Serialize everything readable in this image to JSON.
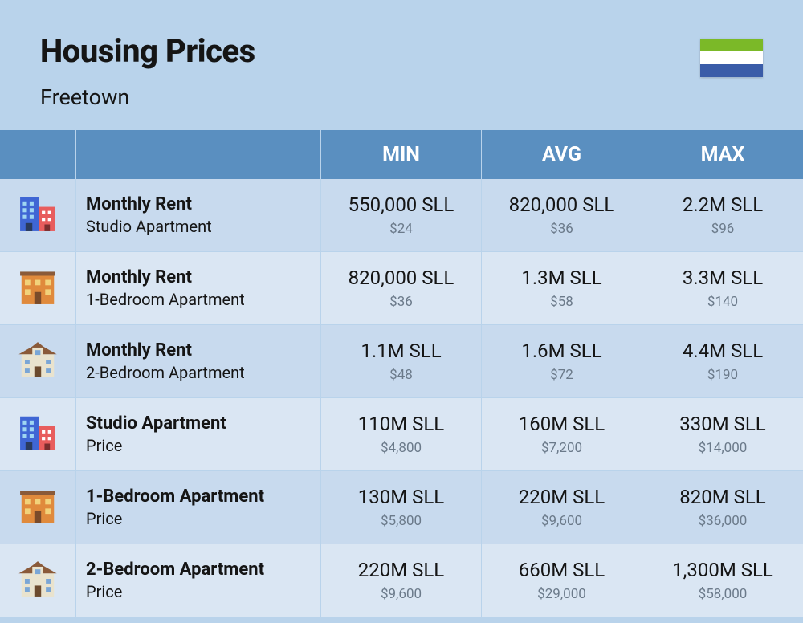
{
  "header": {
    "title": "Housing Prices",
    "city": "Freetown",
    "flag_colors": [
      "#7bb928",
      "#ffffff",
      "#3a5ca8"
    ]
  },
  "columns": [
    "MIN",
    "AVG",
    "MAX"
  ],
  "colors": {
    "page_bg": "#b9d3eb",
    "header_bg": "#5a8fc0",
    "header_fg": "#ffffff",
    "row_even_bg": "#c8daee",
    "row_odd_bg": "#dae6f3",
    "text": "#151515",
    "subtext": "#6b7a8a"
  },
  "icons": {
    "studio": {
      "type": "tall-buildings",
      "colors": {
        "left": "#3f66d4",
        "right": "#e85d5d",
        "windows": "#9fd6f2",
        "door": "#333"
      }
    },
    "one_br": {
      "type": "wide-building",
      "colors": {
        "body": "#e08a3c",
        "windows": "#f2d27a",
        "door": "#7a4b2a",
        "roof": "#8a5a39"
      }
    },
    "two_br": {
      "type": "mansion",
      "colors": {
        "body": "#e9e3ce",
        "roof": "#8a5a39",
        "windows": "#7aa6d6",
        "door": "#6b4a2d"
      }
    }
  },
  "rows": [
    {
      "icon": "studio",
      "title": "Monthly Rent",
      "sub": "Studio Apartment",
      "min": {
        "main": "550,000 SLL",
        "sub": "$24"
      },
      "avg": {
        "main": "820,000 SLL",
        "sub": "$36"
      },
      "max": {
        "main": "2.2M SLL",
        "sub": "$96"
      }
    },
    {
      "icon": "one_br",
      "title": "Monthly Rent",
      "sub": "1-Bedroom Apartment",
      "min": {
        "main": "820,000 SLL",
        "sub": "$36"
      },
      "avg": {
        "main": "1.3M SLL",
        "sub": "$58"
      },
      "max": {
        "main": "3.3M SLL",
        "sub": "$140"
      }
    },
    {
      "icon": "two_br",
      "title": "Monthly Rent",
      "sub": "2-Bedroom Apartment",
      "min": {
        "main": "1.1M SLL",
        "sub": "$48"
      },
      "avg": {
        "main": "1.6M SLL",
        "sub": "$72"
      },
      "max": {
        "main": "4.4M SLL",
        "sub": "$190"
      }
    },
    {
      "icon": "studio",
      "title": "Studio Apartment",
      "sub": "Price",
      "min": {
        "main": "110M SLL",
        "sub": "$4,800"
      },
      "avg": {
        "main": "160M SLL",
        "sub": "$7,200"
      },
      "max": {
        "main": "330M SLL",
        "sub": "$14,000"
      }
    },
    {
      "icon": "one_br",
      "title": "1-Bedroom Apartment",
      "sub": "Price",
      "min": {
        "main": "130M SLL",
        "sub": "$5,800"
      },
      "avg": {
        "main": "220M SLL",
        "sub": "$9,600"
      },
      "max": {
        "main": "820M SLL",
        "sub": "$36,000"
      }
    },
    {
      "icon": "two_br",
      "title": "2-Bedroom Apartment",
      "sub": "Price",
      "min": {
        "main": "220M SLL",
        "sub": "$9,600"
      },
      "avg": {
        "main": "660M SLL",
        "sub": "$29,000"
      },
      "max": {
        "main": "1,300M SLL",
        "sub": "$58,000"
      }
    }
  ]
}
